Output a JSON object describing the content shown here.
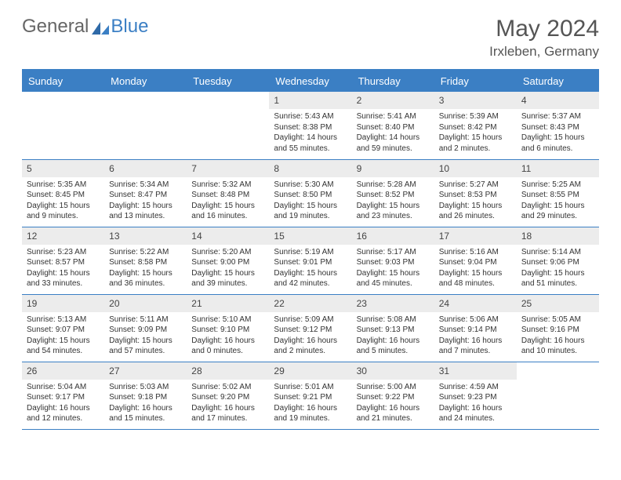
{
  "logo": {
    "general": "General",
    "blue": "Blue"
  },
  "title": "May 2024",
  "location": "Irxleben, Germany",
  "colors": {
    "accent": "#3b7fc4",
    "headerText": "#ffffff",
    "dayNumBg": "#ececec",
    "bodyText": "#333333"
  },
  "weekdays": [
    "Sunday",
    "Monday",
    "Tuesday",
    "Wednesday",
    "Thursday",
    "Friday",
    "Saturday"
  ],
  "weeks": [
    [
      null,
      null,
      null,
      {
        "n": "1",
        "sr": "5:43 AM",
        "ss": "8:38 PM",
        "dl": "14 hours and 55 minutes."
      },
      {
        "n": "2",
        "sr": "5:41 AM",
        "ss": "8:40 PM",
        "dl": "14 hours and 59 minutes."
      },
      {
        "n": "3",
        "sr": "5:39 AM",
        "ss": "8:42 PM",
        "dl": "15 hours and 2 minutes."
      },
      {
        "n": "4",
        "sr": "5:37 AM",
        "ss": "8:43 PM",
        "dl": "15 hours and 6 minutes."
      }
    ],
    [
      {
        "n": "5",
        "sr": "5:35 AM",
        "ss": "8:45 PM",
        "dl": "15 hours and 9 minutes."
      },
      {
        "n": "6",
        "sr": "5:34 AM",
        "ss": "8:47 PM",
        "dl": "15 hours and 13 minutes."
      },
      {
        "n": "7",
        "sr": "5:32 AM",
        "ss": "8:48 PM",
        "dl": "15 hours and 16 minutes."
      },
      {
        "n": "8",
        "sr": "5:30 AM",
        "ss": "8:50 PM",
        "dl": "15 hours and 19 minutes."
      },
      {
        "n": "9",
        "sr": "5:28 AM",
        "ss": "8:52 PM",
        "dl": "15 hours and 23 minutes."
      },
      {
        "n": "10",
        "sr": "5:27 AM",
        "ss": "8:53 PM",
        "dl": "15 hours and 26 minutes."
      },
      {
        "n": "11",
        "sr": "5:25 AM",
        "ss": "8:55 PM",
        "dl": "15 hours and 29 minutes."
      }
    ],
    [
      {
        "n": "12",
        "sr": "5:23 AM",
        "ss": "8:57 PM",
        "dl": "15 hours and 33 minutes."
      },
      {
        "n": "13",
        "sr": "5:22 AM",
        "ss": "8:58 PM",
        "dl": "15 hours and 36 minutes."
      },
      {
        "n": "14",
        "sr": "5:20 AM",
        "ss": "9:00 PM",
        "dl": "15 hours and 39 minutes."
      },
      {
        "n": "15",
        "sr": "5:19 AM",
        "ss": "9:01 PM",
        "dl": "15 hours and 42 minutes."
      },
      {
        "n": "16",
        "sr": "5:17 AM",
        "ss": "9:03 PM",
        "dl": "15 hours and 45 minutes."
      },
      {
        "n": "17",
        "sr": "5:16 AM",
        "ss": "9:04 PM",
        "dl": "15 hours and 48 minutes."
      },
      {
        "n": "18",
        "sr": "5:14 AM",
        "ss": "9:06 PM",
        "dl": "15 hours and 51 minutes."
      }
    ],
    [
      {
        "n": "19",
        "sr": "5:13 AM",
        "ss": "9:07 PM",
        "dl": "15 hours and 54 minutes."
      },
      {
        "n": "20",
        "sr": "5:11 AM",
        "ss": "9:09 PM",
        "dl": "15 hours and 57 minutes."
      },
      {
        "n": "21",
        "sr": "5:10 AM",
        "ss": "9:10 PM",
        "dl": "16 hours and 0 minutes."
      },
      {
        "n": "22",
        "sr": "5:09 AM",
        "ss": "9:12 PM",
        "dl": "16 hours and 2 minutes."
      },
      {
        "n": "23",
        "sr": "5:08 AM",
        "ss": "9:13 PM",
        "dl": "16 hours and 5 minutes."
      },
      {
        "n": "24",
        "sr": "5:06 AM",
        "ss": "9:14 PM",
        "dl": "16 hours and 7 minutes."
      },
      {
        "n": "25",
        "sr": "5:05 AM",
        "ss": "9:16 PM",
        "dl": "16 hours and 10 minutes."
      }
    ],
    [
      {
        "n": "26",
        "sr": "5:04 AM",
        "ss": "9:17 PM",
        "dl": "16 hours and 12 minutes."
      },
      {
        "n": "27",
        "sr": "5:03 AM",
        "ss": "9:18 PM",
        "dl": "16 hours and 15 minutes."
      },
      {
        "n": "28",
        "sr": "5:02 AM",
        "ss": "9:20 PM",
        "dl": "16 hours and 17 minutes."
      },
      {
        "n": "29",
        "sr": "5:01 AM",
        "ss": "9:21 PM",
        "dl": "16 hours and 19 minutes."
      },
      {
        "n": "30",
        "sr": "5:00 AM",
        "ss": "9:22 PM",
        "dl": "16 hours and 21 minutes."
      },
      {
        "n": "31",
        "sr": "4:59 AM",
        "ss": "9:23 PM",
        "dl": "16 hours and 24 minutes."
      },
      null
    ]
  ],
  "labels": {
    "sunrise": "Sunrise: ",
    "sunset": "Sunset: ",
    "daylight": "Daylight: "
  }
}
